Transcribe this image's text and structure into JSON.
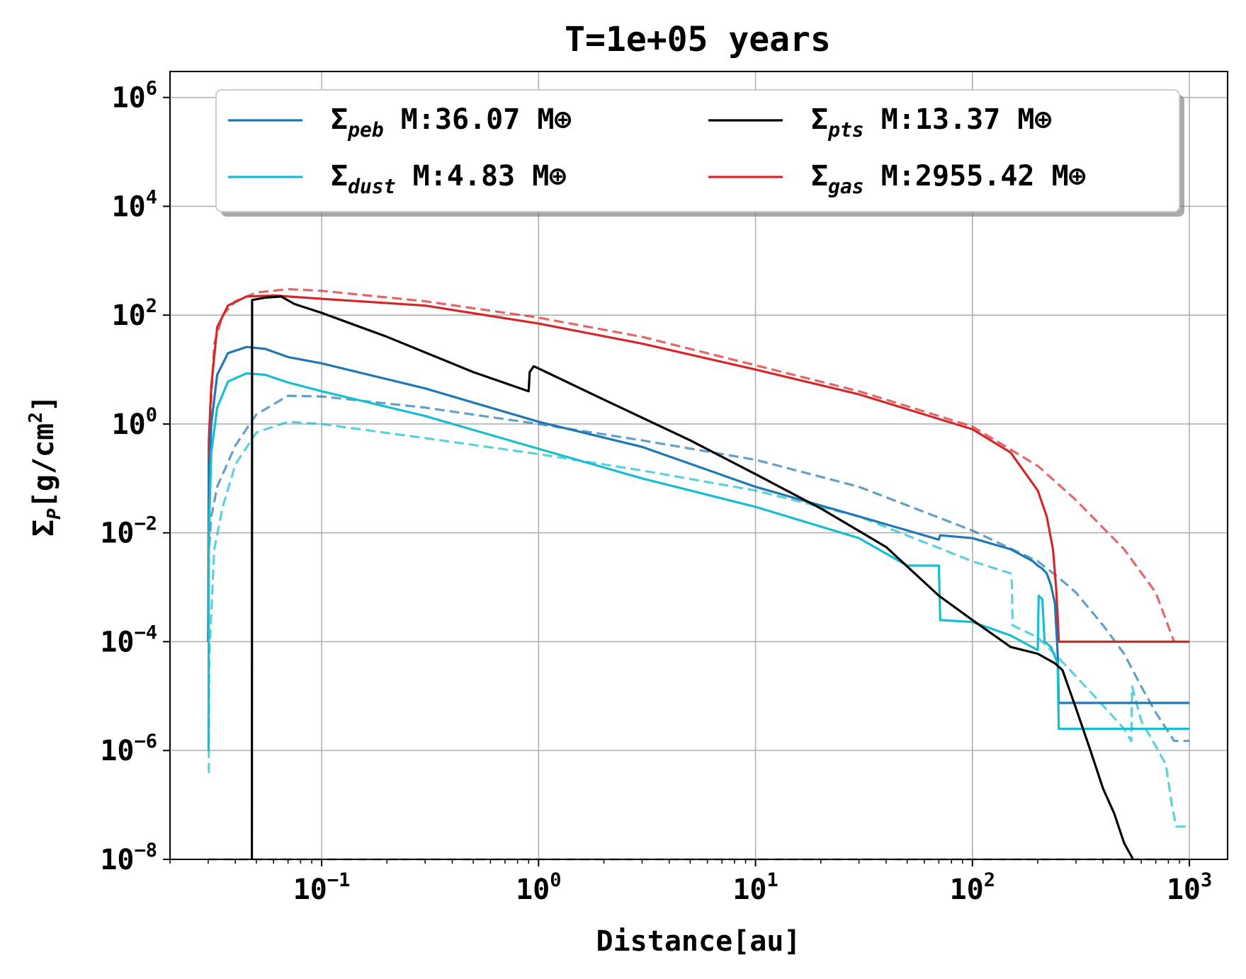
{
  "chart_data": {
    "type": "line",
    "title": "T=1e+05 years",
    "xlabel": "Distance[au]",
    "ylabel": "Σ_P[g/cm²]",
    "ylabel_parts": {
      "sym": "Σ",
      "sub": "P",
      "unit_pre": "[g/cm",
      "sup": "2",
      "unit_post": "]"
    },
    "xscale": "log",
    "yscale": "log",
    "xlim": [
      0.02,
      1500
    ],
    "ylim": [
      1e-08,
      3000000.0
    ],
    "grid": true,
    "x_ticks": [
      {
        "value": 0.1,
        "base": "10",
        "exp": "−1"
      },
      {
        "value": 1,
        "base": "10",
        "exp": "0"
      },
      {
        "value": 10,
        "base": "10",
        "exp": "1"
      },
      {
        "value": 100,
        "base": "10",
        "exp": "2"
      },
      {
        "value": 1000,
        "base": "10",
        "exp": "3"
      }
    ],
    "y_ticks": [
      {
        "value": 1000000.0,
        "base": "10",
        "exp": "6"
      },
      {
        "value": 10000.0,
        "base": "10",
        "exp": "4"
      },
      {
        "value": 100.0,
        "base": "10",
        "exp": "2"
      },
      {
        "value": 1,
        "base": "10",
        "exp": "0"
      },
      {
        "value": 0.01,
        "base": "10",
        "exp": "−2"
      },
      {
        "value": 0.0001,
        "base": "10",
        "exp": "−4"
      },
      {
        "value": 1e-06,
        "base": "10",
        "exp": "−6"
      },
      {
        "value": 1e-08,
        "base": "10",
        "exp": "−8"
      }
    ],
    "legend": {
      "location": "upper center",
      "columns": 2,
      "entries": [
        {
          "sym": "Σ",
          "sub": "peb",
          "text": " M:36.07 M⊕",
          "color": "#1f77b4"
        },
        {
          "sym": "Σ",
          "sub": "pts",
          "text": " M:13.37 M⊕",
          "color": "#000000"
        },
        {
          "sym": "Σ",
          "sub": "dust",
          "text": " M:4.83 M⊕",
          "color": "#17becf"
        },
        {
          "sym": "Σ",
          "sub": "gas",
          "text": " M:2955.42 M⊕",
          "color": "#d62728"
        }
      ]
    },
    "series": [
      {
        "name": "gas_initial",
        "color": "#d62728",
        "style": "dashed",
        "opacity": 0.7,
        "points": [
          [
            0.03,
            0.0001
          ],
          [
            0.0305,
            1
          ],
          [
            0.032,
            30
          ],
          [
            0.035,
            100
          ],
          [
            0.04,
            180
          ],
          [
            0.05,
            260
          ],
          [
            0.07,
            300
          ],
          [
            0.1,
            280
          ],
          [
            0.3,
            180
          ],
          [
            1,
            90
          ],
          [
            3,
            40
          ],
          [
            10,
            12
          ],
          [
            30,
            4
          ],
          [
            100,
            0.9
          ],
          [
            200,
            0.17
          ],
          [
            300,
            0.04
          ],
          [
            500,
            0.005
          ],
          [
            700,
            0.0008
          ],
          [
            850,
            0.0001
          ]
        ]
      },
      {
        "name": "peb_initial",
        "color": "#1f77b4",
        "style": "dashed",
        "opacity": 0.7,
        "points": [
          [
            0.03,
            0.003
          ],
          [
            0.031,
            0.02
          ],
          [
            0.033,
            0.07
          ],
          [
            0.04,
            0.4
          ],
          [
            0.05,
            1.5
          ],
          [
            0.07,
            3.3
          ],
          [
            0.1,
            3.2
          ],
          [
            0.3,
            2
          ],
          [
            1,
            1
          ],
          [
            3,
            0.5
          ],
          [
            10,
            0.22
          ],
          [
            30,
            0.07
          ],
          [
            100,
            0.011
          ],
          [
            200,
            0.003
          ],
          [
            250,
            0.0015
          ],
          [
            300,
            0.0008
          ],
          [
            400,
            0.0002
          ],
          [
            500,
            6e-05
          ],
          [
            600,
            1.5e-05
          ],
          [
            700,
            5e-06
          ],
          [
            850,
            1.5e-06
          ],
          [
            1000,
            1.5e-06
          ]
        ]
      },
      {
        "name": "dust_initial",
        "color": "#17becf",
        "style": "dashed",
        "opacity": 0.7,
        "points": [
          [
            0.03,
            4e-07
          ],
          [
            0.0302,
            4e-07
          ],
          [
            0.0303,
            5e-05
          ],
          [
            0.032,
            0.005
          ],
          [
            0.035,
            0.03
          ],
          [
            0.04,
            0.18
          ],
          [
            0.05,
            0.7
          ],
          [
            0.07,
            1.1
          ],
          [
            0.1,
            1
          ],
          [
            0.3,
            0.55
          ],
          [
            1,
            0.28
          ],
          [
            3,
            0.14
          ],
          [
            10,
            0.06
          ],
          [
            30,
            0.02
          ],
          [
            100,
            0.003
          ],
          [
            150,
            0.0018
          ],
          [
            152,
            0.0012
          ],
          [
            153,
            0.0002
          ],
          [
            200,
            0.00012
          ],
          [
            250,
            5e-05
          ],
          [
            350,
            1.2e-05
          ],
          [
            500,
            2.5e-06
          ],
          [
            540,
            1.5e-06
          ],
          [
            545,
            1.5e-05
          ],
          [
            600,
            3.5e-06
          ],
          [
            700,
            1.2e-06
          ],
          [
            780,
            5.5e-07
          ],
          [
            830,
            1e-07
          ],
          [
            870,
            4e-08
          ],
          [
            1000,
            4e-08
          ]
        ]
      },
      {
        "name": "gas",
        "color": "#d62728",
        "style": "solid",
        "points": [
          [
            0.03,
            0.0001
          ],
          [
            0.0302,
            0.5
          ],
          [
            0.031,
            5
          ],
          [
            0.033,
            60
          ],
          [
            0.037,
            150
          ],
          [
            0.045,
            220
          ],
          [
            0.06,
            230
          ],
          [
            0.1,
            200
          ],
          [
            0.3,
            150
          ],
          [
            1,
            70
          ],
          [
            3,
            30
          ],
          [
            10,
            10
          ],
          [
            30,
            3.5
          ],
          [
            100,
            0.8
          ],
          [
            150,
            0.3
          ],
          [
            200,
            0.06
          ],
          [
            220,
            0.02
          ],
          [
            235,
            0.005
          ],
          [
            243,
            0.001
          ],
          [
            247,
            0.0003
          ],
          [
            250,
            0.0001
          ],
          [
            1000,
            0.0001
          ]
        ]
      },
      {
        "name": "peb",
        "color": "#1f77b4",
        "style": "solid",
        "points": [
          [
            0.03,
            0.0001
          ],
          [
            0.0302,
            0.1
          ],
          [
            0.031,
            1
          ],
          [
            0.033,
            8
          ],
          [
            0.037,
            20
          ],
          [
            0.045,
            26
          ],
          [
            0.055,
            24
          ],
          [
            0.07,
            17
          ],
          [
            0.1,
            13
          ],
          [
            0.3,
            4.5
          ],
          [
            1,
            1.1
          ],
          [
            3,
            0.38
          ],
          [
            10,
            0.07
          ],
          [
            30,
            0.02
          ],
          [
            70,
            0.0075
          ],
          [
            71,
            0.009
          ],
          [
            100,
            0.008
          ],
          [
            150,
            0.005
          ],
          [
            190,
            0.003
          ],
          [
            200,
            0.0025
          ],
          [
            210,
            0.0022
          ],
          [
            220,
            0.0018
          ],
          [
            230,
            0.0011
          ],
          [
            240,
            0.0005
          ],
          [
            247,
            6e-05
          ],
          [
            250,
            7.5e-06
          ],
          [
            1000,
            7.5e-06
          ]
        ]
      },
      {
        "name": "dust",
        "color": "#17becf",
        "style": "solid",
        "points": [
          [
            0.03,
            1e-06
          ],
          [
            0.0301,
            1e-06
          ],
          [
            0.0302,
            0.01
          ],
          [
            0.031,
            0.3
          ],
          [
            0.033,
            2
          ],
          [
            0.037,
            6
          ],
          [
            0.045,
            8.5
          ],
          [
            0.055,
            8
          ],
          [
            0.07,
            5.8
          ],
          [
            0.1,
            4
          ],
          [
            0.3,
            1.4
          ],
          [
            1,
            0.35
          ],
          [
            3,
            0.1
          ],
          [
            10,
            0.03
          ],
          [
            30,
            0.008
          ],
          [
            50,
            0.0025
          ],
          [
            70,
            0.0025
          ],
          [
            71,
            0.00025
          ],
          [
            100,
            0.00023
          ],
          [
            150,
            0.00013
          ],
          [
            200,
            7e-05
          ],
          [
            202,
            0.0007
          ],
          [
            210,
            0.0006
          ],
          [
            215,
            0.0001
          ],
          [
            230,
            8e-05
          ],
          [
            247,
            4e-05
          ],
          [
            250,
            2.5e-06
          ],
          [
            1000,
            2.5e-06
          ]
        ]
      },
      {
        "name": "pts",
        "color": "#000000",
        "style": "solid",
        "points": [
          [
            0.0477,
            1e-08
          ],
          [
            0.0478,
            190
          ],
          [
            0.055,
            210
          ],
          [
            0.065,
            220
          ],
          [
            0.075,
            160
          ],
          [
            0.1,
            110
          ],
          [
            0.2,
            40
          ],
          [
            0.5,
            9
          ],
          [
            0.9,
            4
          ],
          [
            0.91,
            9
          ],
          [
            0.95,
            11.5
          ],
          [
            1,
            10.5
          ],
          [
            2,
            2.8
          ],
          [
            5,
            0.5
          ],
          [
            10,
            0.12
          ],
          [
            20,
            0.028
          ],
          [
            40,
            0.0055
          ],
          [
            70,
            0.0007
          ],
          [
            100,
            0.00025
          ],
          [
            150,
            8e-05
          ],
          [
            200,
            6e-05
          ],
          [
            240,
            4e-05
          ],
          [
            260,
            3e-05
          ],
          [
            300,
            6e-06
          ],
          [
            350,
            1e-06
          ],
          [
            400,
            2e-07
          ],
          [
            450,
            7e-08
          ],
          [
            500,
            2e-08
          ],
          [
            550,
            1e-08
          ]
        ]
      },
      {
        "name": "floor",
        "color": "#808080",
        "style": "dashed",
        "opacity": 0.6,
        "points": [
          [
            0.03,
            1e-08
          ],
          [
            1000,
            1e-08
          ]
        ]
      }
    ]
  }
}
